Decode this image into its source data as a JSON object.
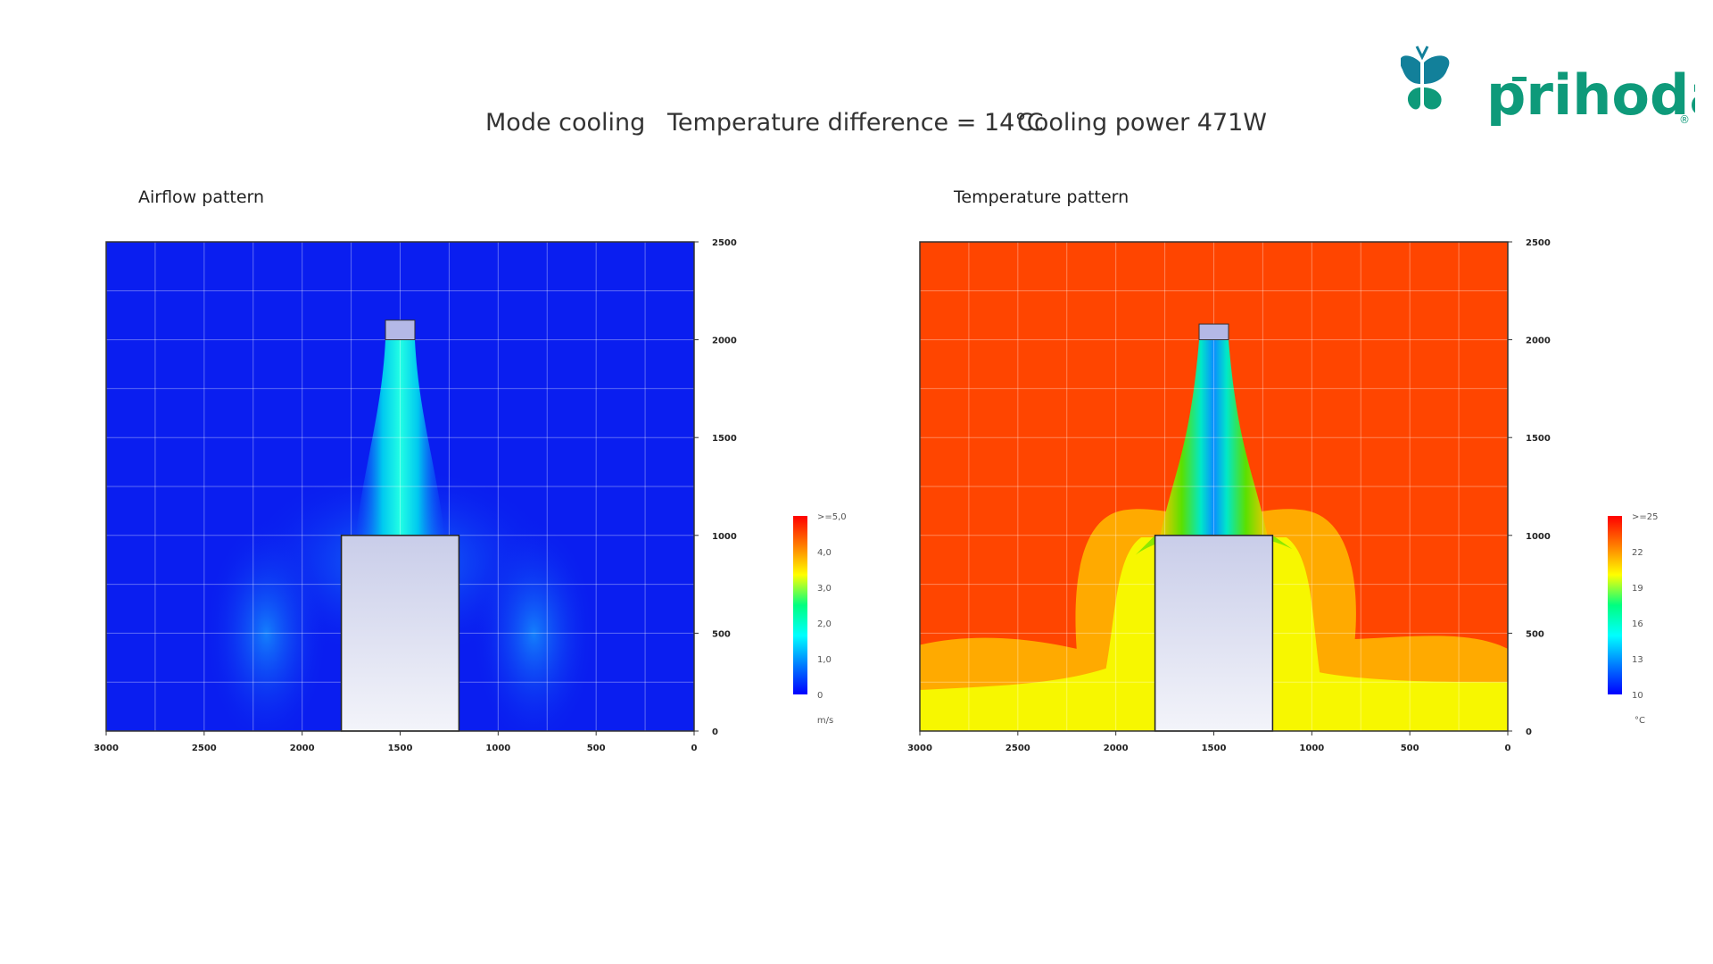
{
  "header": {
    "mode": "Mode cooling",
    "temp_diff": "Temperature difference = 14°C",
    "cooling_power": "Cooling power 471W"
  },
  "logo": {
    "text": "prihoda",
    "registered": "®",
    "color": "#0e9a7a",
    "icon_color": "#12809a"
  },
  "chart_data": [
    {
      "type": "heatmap",
      "title": "Airflow pattern",
      "x_ticks": [
        "3000",
        "2500",
        "2000",
        "1500",
        "1000",
        "500",
        "0"
      ],
      "y_ticks": [
        "0",
        "500",
        "1000",
        "1500",
        "2000",
        "2500"
      ],
      "xlim": [
        3000,
        0
      ],
      "ylim": [
        0,
        2500
      ],
      "grid": true,
      "colorbar": {
        "labels": [
          ">=5,0",
          "4,0",
          "3,0",
          "2,0",
          "1,0",
          "0"
        ],
        "unit": "m/s",
        "colors": [
          "#0000ff",
          "#0080ff",
          "#00ffff",
          "#00ff80",
          "#ffff00",
          "#ff8000",
          "#ff0000"
        ]
      },
      "obstacle": {
        "x": [
          1800,
          1200
        ],
        "y": [
          0,
          1000
        ]
      },
      "diffuser": {
        "x": [
          1575,
          1425
        ],
        "y": [
          2000,
          2100
        ]
      },
      "background_color": "#0a1ef0"
    },
    {
      "type": "heatmap",
      "title": "Temperature pattern",
      "x_ticks": [
        "3000",
        "2500",
        "2000",
        "1500",
        "1000",
        "500",
        "0"
      ],
      "y_ticks": [
        "0",
        "500",
        "1000",
        "1500",
        "2000",
        "2500"
      ],
      "xlim": [
        3000,
        0
      ],
      "ylim": [
        0,
        2500
      ],
      "grid": true,
      "colorbar": {
        "labels": [
          ">=25",
          "22",
          "19",
          "16",
          "13",
          "10"
        ],
        "unit": "°C",
        "colors": [
          "#0000ff",
          "#0080ff",
          "#00ffff",
          "#00ff80",
          "#ffff00",
          "#ff8000",
          "#ff0000"
        ]
      },
      "obstacle": {
        "x": [
          1800,
          1200
        ],
        "y": [
          0,
          1000
        ]
      },
      "diffuser": {
        "x": [
          1575,
          1425
        ],
        "y": [
          2000,
          2080
        ]
      },
      "background_color": "#ff4500"
    }
  ]
}
